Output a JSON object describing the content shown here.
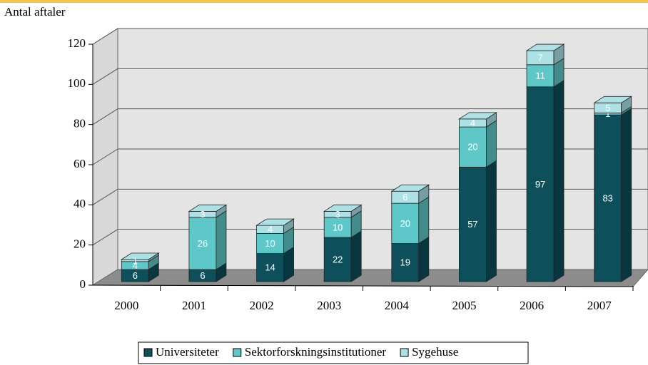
{
  "chart_data": {
    "type": "bar",
    "stacked": true,
    "ylabel": "Antal aftaler",
    "categories": [
      "2000",
      "2001",
      "2002",
      "2003",
      "2004",
      "2005",
      "2006",
      "2007"
    ],
    "series": [
      {
        "name": "Universiteter",
        "color": "#0d4f5b",
        "values": [
          6,
          6,
          14,
          22,
          19,
          57,
          97,
          83
        ]
      },
      {
        "name": "Sektorforskningsinstitutioner",
        "color": "#5ec8c8",
        "values": [
          4,
          26,
          10,
          10,
          20,
          20,
          11,
          1
        ]
      },
      {
        "name": "Sygehuse",
        "color": "#ace2e6",
        "values": [
          1,
          3,
          4,
          3,
          6,
          4,
          7,
          5
        ]
      }
    ],
    "ylim": [
      0,
      120
    ],
    "yticks": [
      0,
      20,
      40,
      60,
      80,
      100,
      120
    ],
    "grid": true,
    "legend": "bottom"
  }
}
